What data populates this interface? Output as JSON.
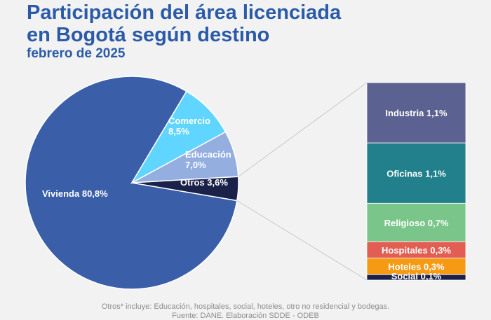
{
  "title_line1": "Participación del área licenciada",
  "title_line2": "en Bogotá según destino",
  "subtitle": "febrero de 2025",
  "footnote": "Otros* incluye: Educación, hospitales, social, hoteles, otro no residencial y bodegas.",
  "source": "Fuente: DANE. Elaboración SDDE - ODEB",
  "chart_data": [
    {
      "type": "pie",
      "slices": [
        {
          "label": "Vivienda 80,8%",
          "value": 80.8,
          "color": "#3a5ea8"
        },
        {
          "label_lines": [
            "Comercio",
            "8,5%"
          ],
          "value": 8.5,
          "color": "#5fd5ff"
        },
        {
          "label_lines": [
            "Educación",
            "7,0%"
          ],
          "value": 7.0,
          "color": "#94aee0"
        },
        {
          "label": "Otros 3,6%",
          "value": 3.6,
          "color": "#1b2249"
        }
      ]
    },
    {
      "type": "bar",
      "stacked": true,
      "segments": [
        {
          "label": "Industria 1,1%",
          "value": 1.1,
          "color": "#5b6190"
        },
        {
          "label": "Oficinas 1,1%",
          "value": 1.1,
          "color": "#21808c"
        },
        {
          "label": "Religioso 0,7%",
          "value": 0.7,
          "color": "#7ac58a"
        },
        {
          "label": "Hospitales 0,3%",
          "value": 0.3,
          "color": "#e25e52"
        },
        {
          "label": "Hoteles 0,3%",
          "value": 0.3,
          "color": "#f59a12"
        },
        {
          "label": "Social 0,1%",
          "value": 0.1,
          "color": "#1b2249"
        }
      ]
    }
  ]
}
